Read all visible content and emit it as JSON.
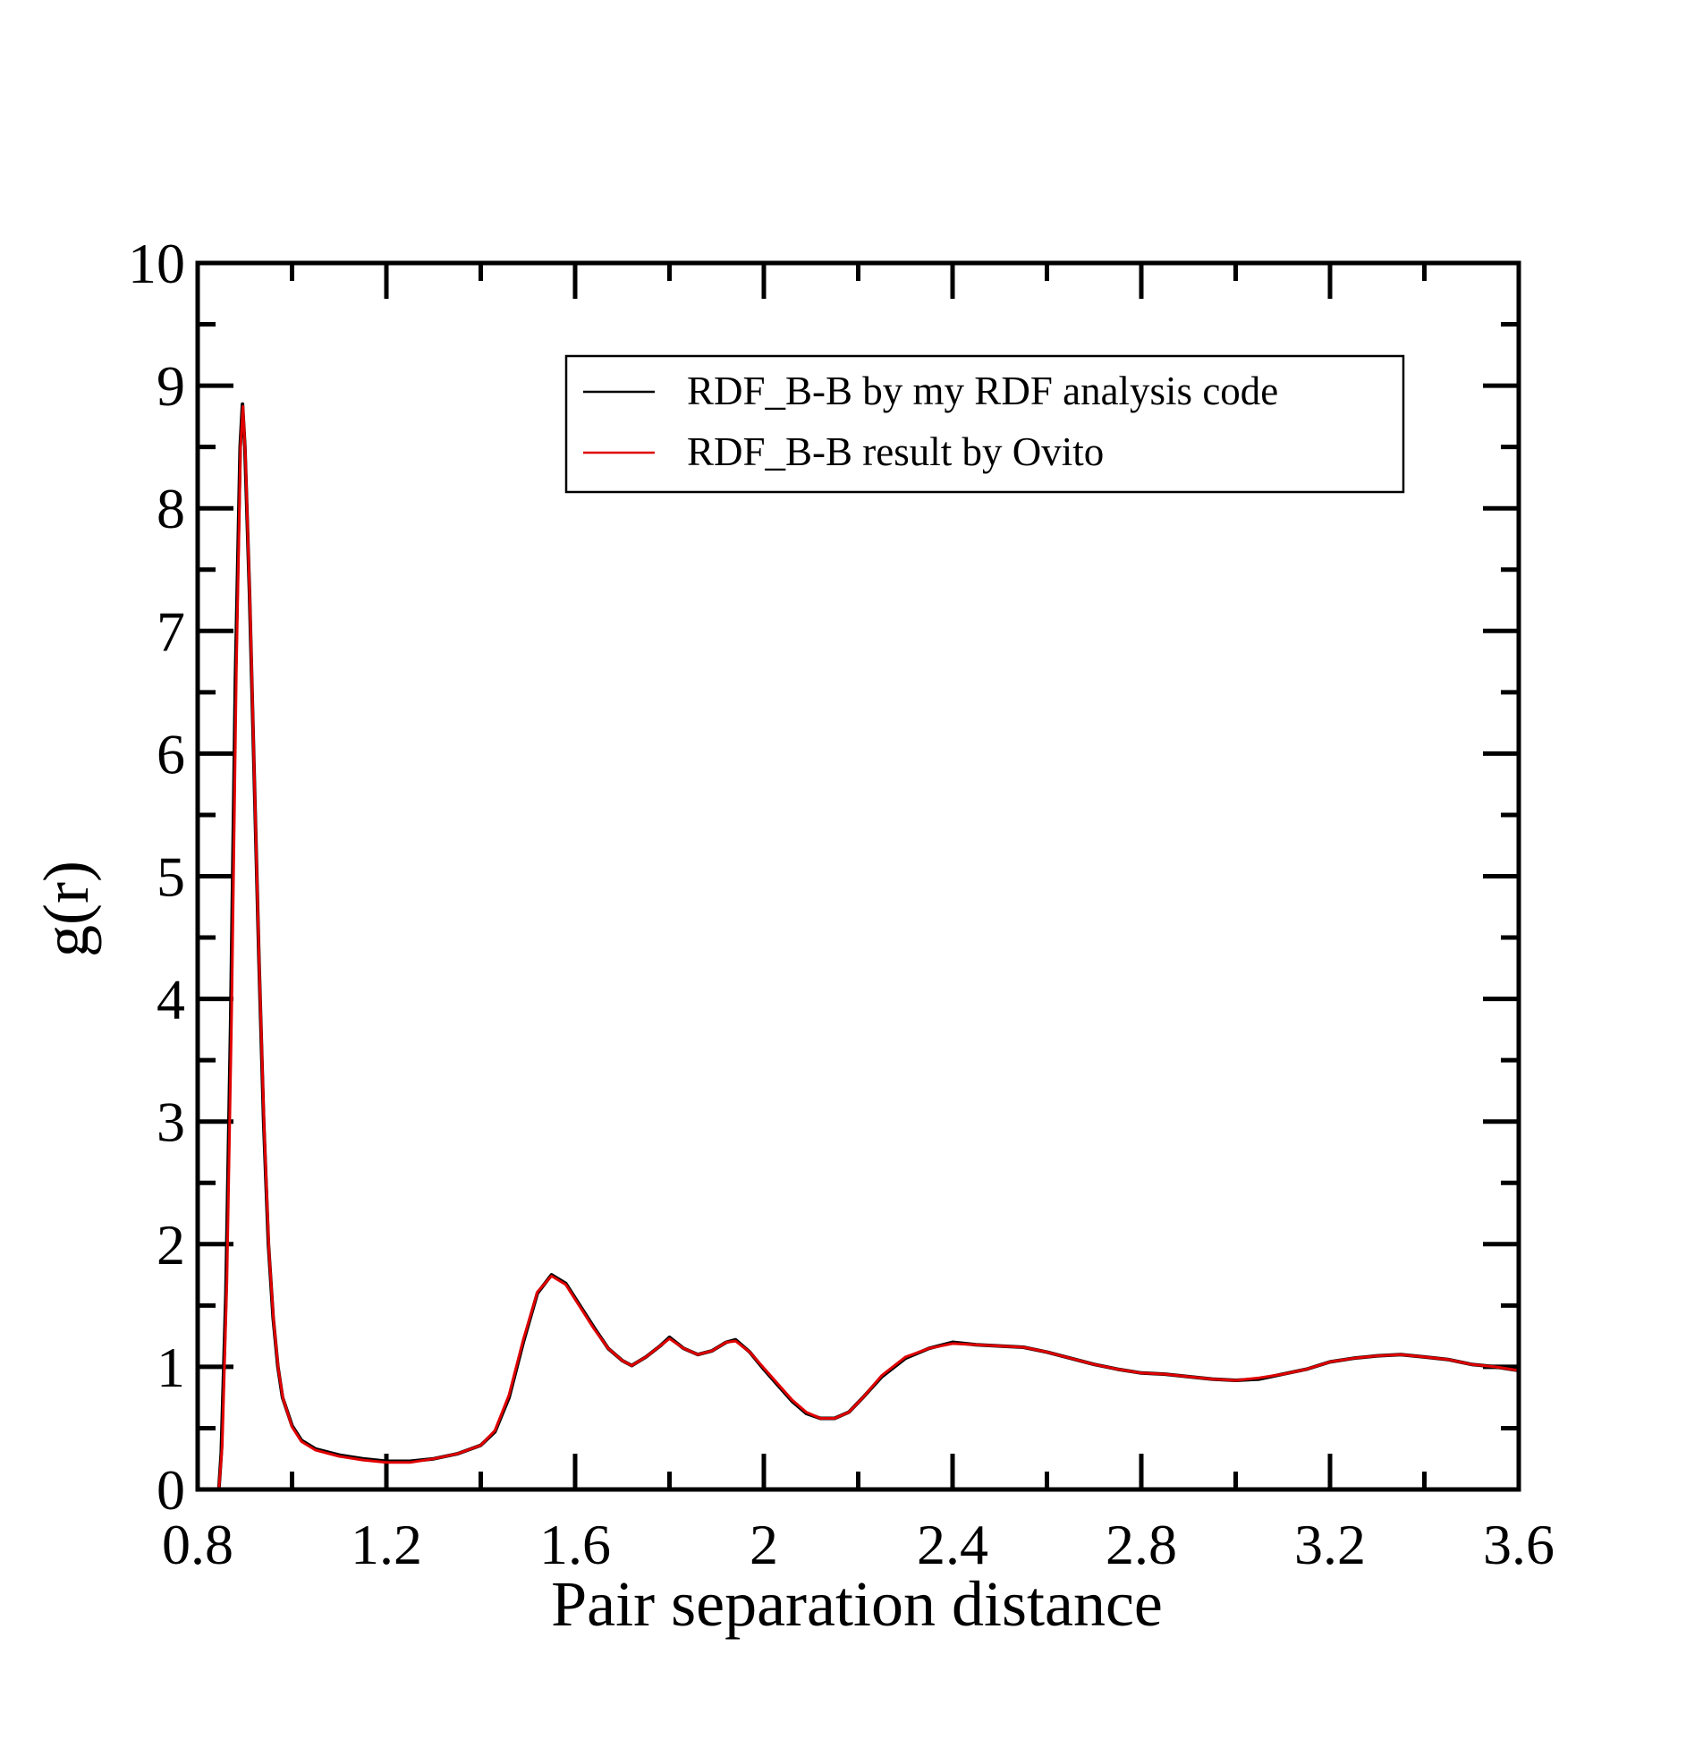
{
  "chart_data": {
    "type": "line",
    "xlabel": "Pair separation distance",
    "ylabel": "g(r)",
    "xlim": [
      0.8,
      3.6
    ],
    "ylim": [
      0,
      10
    ],
    "x_ticks": [
      "0.8",
      "1.2",
      "1.6",
      "2",
      "2.4",
      "2.8",
      "3.2",
      "3.6"
    ],
    "y_ticks": [
      "0",
      "1",
      "2",
      "3",
      "4",
      "5",
      "6",
      "7",
      "8",
      "9",
      "10"
    ],
    "grid": false,
    "legend_position": "top-right",
    "series": [
      {
        "name": "RDF_B-B by my RDF analysis code",
        "color": "#000000",
        "points": [
          [
            0.8,
            0.0
          ],
          [
            0.83,
            0.0
          ],
          [
            0.845,
            0.0
          ],
          [
            0.85,
            0.3
          ],
          [
            0.86,
            1.6
          ],
          [
            0.87,
            3.8
          ],
          [
            0.88,
            6.6
          ],
          [
            0.89,
            8.5
          ],
          [
            0.895,
            8.85
          ],
          [
            0.9,
            8.5
          ],
          [
            0.91,
            7.3
          ],
          [
            0.92,
            5.8
          ],
          [
            0.93,
            4.3
          ],
          [
            0.94,
            3.0
          ],
          [
            0.95,
            2.0
          ],
          [
            0.96,
            1.4
          ],
          [
            0.97,
            1.0
          ],
          [
            0.98,
            0.75
          ],
          [
            1.0,
            0.52
          ],
          [
            1.02,
            0.4
          ],
          [
            1.05,
            0.33
          ],
          [
            1.1,
            0.28
          ],
          [
            1.15,
            0.25
          ],
          [
            1.2,
            0.23
          ],
          [
            1.25,
            0.23
          ],
          [
            1.3,
            0.25
          ],
          [
            1.35,
            0.29
          ],
          [
            1.4,
            0.36
          ],
          [
            1.43,
            0.47
          ],
          [
            1.46,
            0.75
          ],
          [
            1.49,
            1.2
          ],
          [
            1.52,
            1.6
          ],
          [
            1.55,
            1.75
          ],
          [
            1.58,
            1.68
          ],
          [
            1.61,
            1.5
          ],
          [
            1.64,
            1.32
          ],
          [
            1.67,
            1.15
          ],
          [
            1.7,
            1.05
          ],
          [
            1.72,
            1.01
          ],
          [
            1.75,
            1.08
          ],
          [
            1.78,
            1.17
          ],
          [
            1.8,
            1.24
          ],
          [
            1.83,
            1.15
          ],
          [
            1.86,
            1.1
          ],
          [
            1.89,
            1.13
          ],
          [
            1.92,
            1.2
          ],
          [
            1.94,
            1.22
          ],
          [
            1.97,
            1.12
          ],
          [
            2.0,
            0.98
          ],
          [
            2.03,
            0.85
          ],
          [
            2.06,
            0.72
          ],
          [
            2.09,
            0.62
          ],
          [
            2.12,
            0.58
          ],
          [
            2.15,
            0.58
          ],
          [
            2.18,
            0.63
          ],
          [
            2.21,
            0.75
          ],
          [
            2.25,
            0.92
          ],
          [
            2.3,
            1.07
          ],
          [
            2.35,
            1.15
          ],
          [
            2.4,
            1.2
          ],
          [
            2.45,
            1.18
          ],
          [
            2.5,
            1.17
          ],
          [
            2.55,
            1.16
          ],
          [
            2.6,
            1.12
          ],
          [
            2.65,
            1.07
          ],
          [
            2.7,
            1.02
          ],
          [
            2.75,
            0.98
          ],
          [
            2.8,
            0.95
          ],
          [
            2.85,
            0.94
          ],
          [
            2.9,
            0.92
          ],
          [
            2.95,
            0.9
          ],
          [
            3.0,
            0.89
          ],
          [
            3.05,
            0.9
          ],
          [
            3.1,
            0.94
          ],
          [
            3.15,
            0.98
          ],
          [
            3.2,
            1.04
          ],
          [
            3.25,
            1.07
          ],
          [
            3.3,
            1.09
          ],
          [
            3.35,
            1.1
          ],
          [
            3.4,
            1.08
          ],
          [
            3.45,
            1.06
          ],
          [
            3.5,
            1.02
          ],
          [
            3.55,
            1.0
          ],
          [
            3.6,
            0.97
          ]
        ]
      },
      {
        "name": "RDF_B-B result by Ovito",
        "color": "#e00000",
        "points": [
          [
            0.8,
            0.0
          ],
          [
            0.835,
            0.0
          ],
          [
            0.845,
            0.0
          ],
          [
            0.852,
            0.35
          ],
          [
            0.862,
            1.7
          ],
          [
            0.872,
            3.9
          ],
          [
            0.882,
            6.7
          ],
          [
            0.891,
            8.5
          ],
          [
            0.896,
            8.83
          ],
          [
            0.901,
            8.45
          ],
          [
            0.911,
            7.2
          ],
          [
            0.921,
            5.7
          ],
          [
            0.931,
            4.2
          ],
          [
            0.941,
            2.95
          ],
          [
            0.951,
            1.95
          ],
          [
            0.961,
            1.38
          ],
          [
            0.971,
            0.98
          ],
          [
            0.981,
            0.74
          ],
          [
            1.0,
            0.51
          ],
          [
            1.02,
            0.39
          ],
          [
            1.05,
            0.32
          ],
          [
            1.1,
            0.27
          ],
          [
            1.15,
            0.24
          ],
          [
            1.2,
            0.22
          ],
          [
            1.25,
            0.22
          ],
          [
            1.3,
            0.25
          ],
          [
            1.35,
            0.29
          ],
          [
            1.4,
            0.36
          ],
          [
            1.43,
            0.48
          ],
          [
            1.46,
            0.77
          ],
          [
            1.49,
            1.22
          ],
          [
            1.52,
            1.61
          ],
          [
            1.55,
            1.74
          ],
          [
            1.58,
            1.67
          ],
          [
            1.61,
            1.49
          ],
          [
            1.64,
            1.31
          ],
          [
            1.67,
            1.15
          ],
          [
            1.7,
            1.05
          ],
          [
            1.72,
            1.01
          ],
          [
            1.75,
            1.08
          ],
          [
            1.78,
            1.17
          ],
          [
            1.8,
            1.23
          ],
          [
            1.83,
            1.15
          ],
          [
            1.86,
            1.1
          ],
          [
            1.89,
            1.13
          ],
          [
            1.92,
            1.2
          ],
          [
            1.94,
            1.21
          ],
          [
            1.97,
            1.12
          ],
          [
            2.0,
            0.99
          ],
          [
            2.03,
            0.86
          ],
          [
            2.06,
            0.73
          ],
          [
            2.09,
            0.63
          ],
          [
            2.12,
            0.58
          ],
          [
            2.15,
            0.58
          ],
          [
            2.18,
            0.63
          ],
          [
            2.21,
            0.75
          ],
          [
            2.25,
            0.93
          ],
          [
            2.3,
            1.08
          ],
          [
            2.35,
            1.15
          ],
          [
            2.4,
            1.19
          ],
          [
            2.45,
            1.18
          ],
          [
            2.5,
            1.17
          ],
          [
            2.55,
            1.16
          ],
          [
            2.6,
            1.12
          ],
          [
            2.65,
            1.07
          ],
          [
            2.7,
            1.02
          ],
          [
            2.75,
            0.98
          ],
          [
            2.8,
            0.95
          ],
          [
            2.85,
            0.94
          ],
          [
            2.9,
            0.92
          ],
          [
            2.95,
            0.9
          ],
          [
            3.0,
            0.89
          ],
          [
            3.05,
            0.91
          ],
          [
            3.1,
            0.94
          ],
          [
            3.15,
            0.98
          ],
          [
            3.2,
            1.04
          ],
          [
            3.25,
            1.07
          ],
          [
            3.3,
            1.09
          ],
          [
            3.35,
            1.1
          ],
          [
            3.4,
            1.08
          ],
          [
            3.45,
            1.06
          ],
          [
            3.5,
            1.02
          ],
          [
            3.55,
            1.0
          ],
          [
            3.6,
            0.97
          ]
        ]
      }
    ]
  }
}
